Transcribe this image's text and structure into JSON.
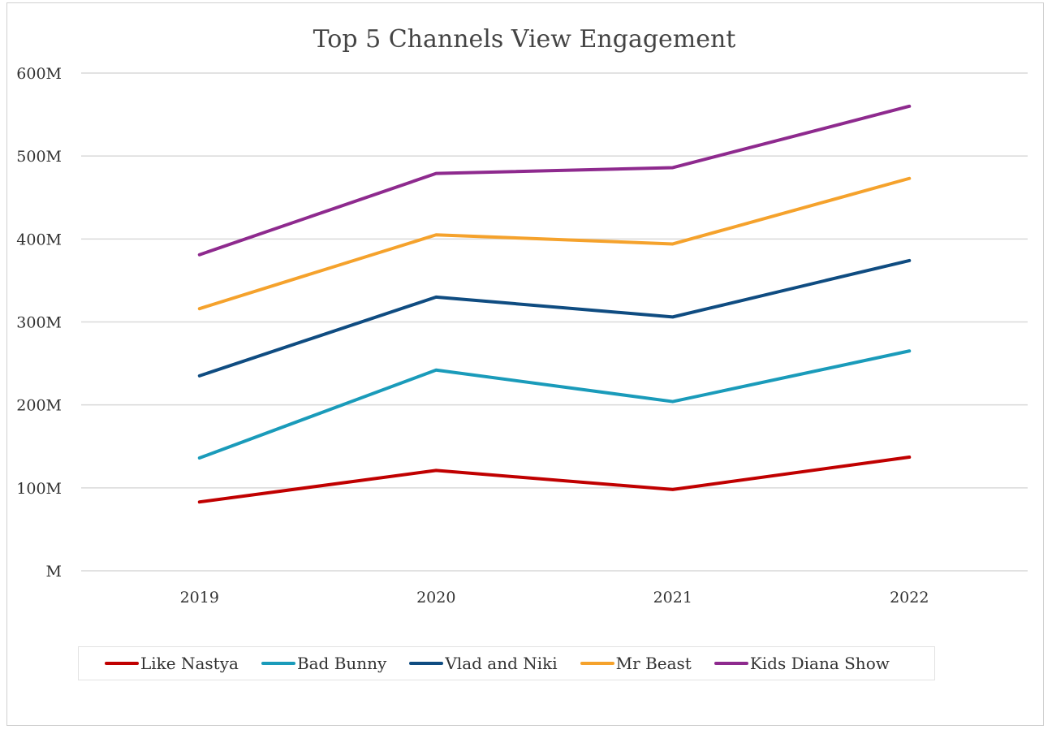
{
  "chart_data": {
    "type": "line",
    "title": "Top 5 Channels View Engagement",
    "xlabel": "",
    "ylabel": "",
    "categories": [
      "2019",
      "2020",
      "2021",
      "2022"
    ],
    "ylim": [
      0,
      600
    ],
    "yticks": [
      {
        "value": 0,
        "label": "M"
      },
      {
        "value": 100,
        "label": "100M"
      },
      {
        "value": 200,
        "label": "200M"
      },
      {
        "value": 300,
        "label": "300M"
      },
      {
        "value": 400,
        "label": "400M"
      },
      {
        "value": 500,
        "label": "500M"
      },
      {
        "value": 600,
        "label": "600M"
      }
    ],
    "grid": true,
    "legend": "bottom",
    "series": [
      {
        "name": "Like Nastya",
        "color": "#c00000",
        "values": [
          83,
          121,
          98,
          137
        ]
      },
      {
        "name": "Bad Bunny",
        "color": "#1a9bba",
        "values": [
          136,
          242,
          204,
          265
        ]
      },
      {
        "name": "Vlad and Niki",
        "color": "#0f4c81",
        "values": [
          235,
          330,
          306,
          374
        ]
      },
      {
        "name": "Mr Beast",
        "color": "#f5a22c",
        "values": [
          316,
          405,
          394,
          473
        ]
      },
      {
        "name": "Kids Diana Show",
        "color": "#8e2a8e",
        "values": [
          381,
          479,
          486,
          560
        ]
      }
    ]
  }
}
